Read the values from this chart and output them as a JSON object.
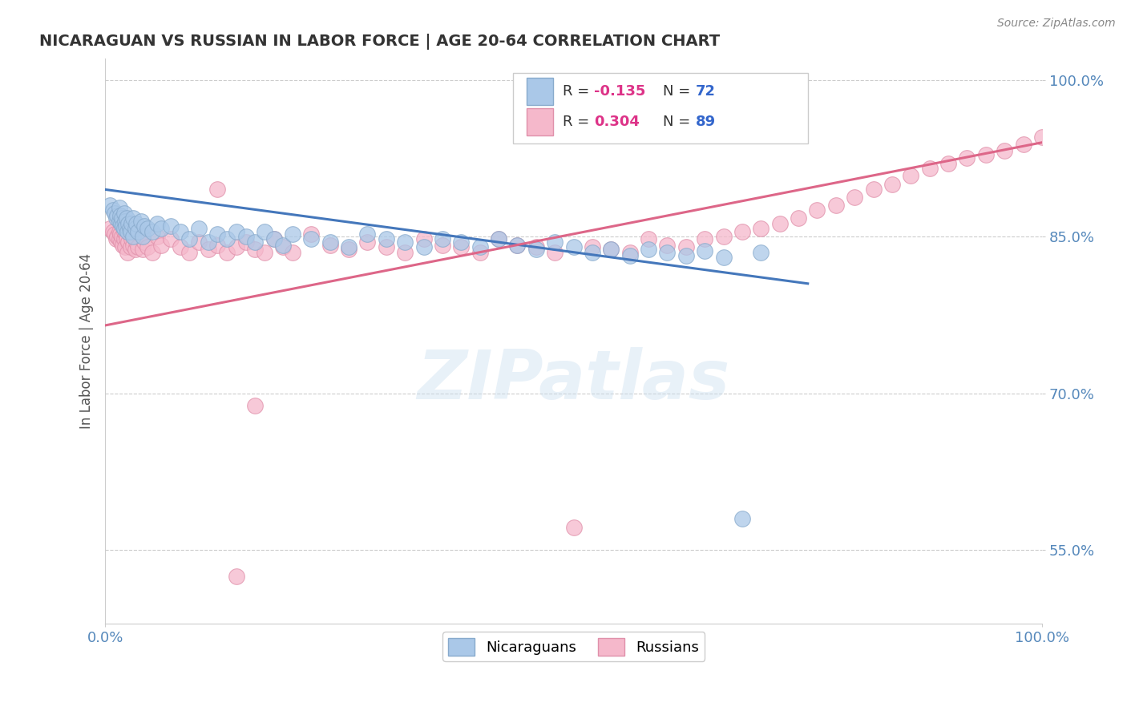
{
  "title": "NICARAGUAN VS RUSSIAN IN LABOR FORCE | AGE 20-64 CORRELATION CHART",
  "source_text": "Source: ZipAtlas.com",
  "ylabel": "In Labor Force | Age 20-64",
  "xlim": [
    0.0,
    1.0
  ],
  "ylim": [
    0.48,
    1.02
  ],
  "x_ticks": [
    0.0,
    1.0
  ],
  "x_tick_labels": [
    "0.0%",
    "100.0%"
  ],
  "y_ticks": [
    0.55,
    0.7,
    0.85,
    1.0
  ],
  "y_tick_labels": [
    "55.0%",
    "70.0%",
    "85.0%",
    "100.0%"
  ],
  "R_nicaraguan": -0.135,
  "N_nicaraguan": 72,
  "R_russian": 0.304,
  "N_russian": 89,
  "nicaraguan_color": "#aac8e8",
  "russian_color": "#f5b8cb",
  "nicaraguan_edge": "#88aacc",
  "russian_edge": "#e090aa",
  "trend_nicaraguan_color": "#4477bb",
  "trend_russian_color": "#dd6688",
  "watermark_text": "ZIPatlas",
  "background_color": "#ffffff",
  "grid_color": "#cccccc",
  "trend_nic_x0": 0.0,
  "trend_nic_x1": 0.75,
  "trend_nic_y0": 0.895,
  "trend_nic_y1": 0.805,
  "trend_rus_x0": 0.0,
  "trend_rus_x1": 1.0,
  "trend_rus_y0": 0.765,
  "trend_rus_y1": 0.94,
  "nic_x": [
    0.005,
    0.008,
    0.01,
    0.012,
    0.013,
    0.015,
    0.015,
    0.016,
    0.017,
    0.018,
    0.019,
    0.02,
    0.02,
    0.021,
    0.022,
    0.023,
    0.024,
    0.025,
    0.026,
    0.027,
    0.028,
    0.03,
    0.03,
    0.032,
    0.033,
    0.035,
    0.038,
    0.04,
    0.042,
    0.045,
    0.05,
    0.055,
    0.06,
    0.07,
    0.08,
    0.09,
    0.1,
    0.11,
    0.12,
    0.13,
    0.14,
    0.15,
    0.16,
    0.17,
    0.18,
    0.19,
    0.2,
    0.22,
    0.24,
    0.26,
    0.28,
    0.3,
    0.32,
    0.34,
    0.36,
    0.38,
    0.4,
    0.42,
    0.44,
    0.46,
    0.48,
    0.5,
    0.52,
    0.54,
    0.56,
    0.58,
    0.6,
    0.62,
    0.64,
    0.66,
    0.68,
    0.7
  ],
  "nic_y": [
    0.88,
    0.875,
    0.872,
    0.868,
    0.87,
    0.865,
    0.878,
    0.87,
    0.862,
    0.868,
    0.86,
    0.872,
    0.858,
    0.865,
    0.86,
    0.868,
    0.855,
    0.862,
    0.858,
    0.855,
    0.862,
    0.85,
    0.868,
    0.858,
    0.862,
    0.855,
    0.865,
    0.85,
    0.86,
    0.858,
    0.855,
    0.862,
    0.858,
    0.86,
    0.855,
    0.848,
    0.858,
    0.845,
    0.852,
    0.848,
    0.855,
    0.85,
    0.845,
    0.855,
    0.848,
    0.842,
    0.852,
    0.848,
    0.845,
    0.84,
    0.852,
    0.848,
    0.845,
    0.84,
    0.848,
    0.845,
    0.84,
    0.848,
    0.842,
    0.838,
    0.845,
    0.84,
    0.835,
    0.838,
    0.832,
    0.838,
    0.835,
    0.832,
    0.836,
    0.83,
    0.58,
    0.835
  ],
  "rus_x": [
    0.005,
    0.008,
    0.01,
    0.012,
    0.013,
    0.015,
    0.015,
    0.016,
    0.017,
    0.018,
    0.019,
    0.02,
    0.02,
    0.021,
    0.022,
    0.023,
    0.024,
    0.025,
    0.026,
    0.027,
    0.028,
    0.03,
    0.03,
    0.032,
    0.033,
    0.035,
    0.038,
    0.04,
    0.042,
    0.045,
    0.05,
    0.055,
    0.06,
    0.07,
    0.08,
    0.09,
    0.1,
    0.11,
    0.12,
    0.13,
    0.14,
    0.15,
    0.16,
    0.17,
    0.18,
    0.19,
    0.2,
    0.22,
    0.24,
    0.26,
    0.28,
    0.3,
    0.32,
    0.34,
    0.36,
    0.38,
    0.4,
    0.42,
    0.44,
    0.46,
    0.48,
    0.5,
    0.52,
    0.54,
    0.56,
    0.58,
    0.6,
    0.62,
    0.64,
    0.66,
    0.68,
    0.7,
    0.72,
    0.74,
    0.76,
    0.78,
    0.8,
    0.82,
    0.84,
    0.86,
    0.88,
    0.9,
    0.92,
    0.94,
    0.96,
    0.98,
    1.0,
    0.12,
    0.14,
    0.16
  ],
  "rus_y": [
    0.858,
    0.855,
    0.852,
    0.848,
    0.85,
    0.855,
    0.848,
    0.852,
    0.845,
    0.85,
    0.842,
    0.848,
    0.855,
    0.84,
    0.852,
    0.848,
    0.835,
    0.845,
    0.852,
    0.84,
    0.848,
    0.842,
    0.855,
    0.838,
    0.845,
    0.84,
    0.852,
    0.838,
    0.845,
    0.84,
    0.835,
    0.85,
    0.842,
    0.848,
    0.84,
    0.835,
    0.845,
    0.838,
    0.842,
    0.835,
    0.84,
    0.845,
    0.838,
    0.835,
    0.848,
    0.84,
    0.835,
    0.852,
    0.842,
    0.838,
    0.845,
    0.84,
    0.835,
    0.848,
    0.842,
    0.84,
    0.835,
    0.848,
    0.842,
    0.84,
    0.835,
    0.572,
    0.84,
    0.838,
    0.835,
    0.848,
    0.842,
    0.84,
    0.848,
    0.85,
    0.855,
    0.858,
    0.862,
    0.868,
    0.875,
    0.88,
    0.888,
    0.895,
    0.9,
    0.908,
    0.915,
    0.92,
    0.925,
    0.928,
    0.932,
    0.938,
    0.945,
    0.895,
    0.525,
    0.688
  ]
}
